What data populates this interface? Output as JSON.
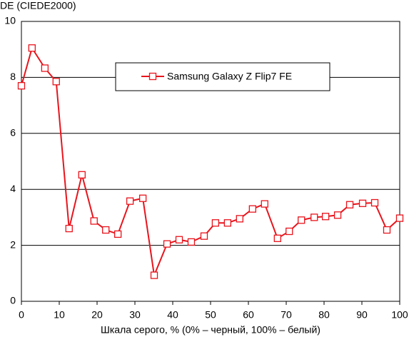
{
  "chart_data": {
    "type": "line",
    "y_label": "DE (CIEDE2000)",
    "x_label": "Шкала серого, % (0% – черный, 100% – белый)",
    "x": [
      0,
      2.8,
      6.2,
      9.2,
      12.6,
      16.0,
      19.2,
      22.3,
      25.5,
      28.7,
      32.1,
      35.1,
      38.5,
      41.7,
      44.9,
      48.3,
      51.3,
      54.5,
      57.7,
      61.1,
      64.3,
      67.7,
      70.8,
      74.0,
      77.4,
      80.4,
      83.6,
      86.8,
      90.2,
      93.4,
      96.6,
      100
    ],
    "series": [
      {
        "name": "Samsung Galaxy Z Flip7 FE",
        "color": "#e8141c",
        "values": [
          7.7,
          9.05,
          8.33,
          7.85,
          2.6,
          4.52,
          2.87,
          2.55,
          2.4,
          3.58,
          3.68,
          0.93,
          2.05,
          2.2,
          2.12,
          2.33,
          2.8,
          2.8,
          2.95,
          3.3,
          3.48,
          2.25,
          2.5,
          2.9,
          3.0,
          3.03,
          3.08,
          3.45,
          3.5,
          3.52,
          2.55,
          2.97
        ]
      }
    ],
    "xlim": [
      0,
      100
    ],
    "xticks": [
      0,
      10,
      20,
      30,
      40,
      50,
      60,
      70,
      80,
      90,
      100
    ],
    "ylim": [
      0,
      10
    ],
    "yticks": [
      0,
      2,
      4,
      6,
      8,
      10
    ],
    "grid": true
  }
}
